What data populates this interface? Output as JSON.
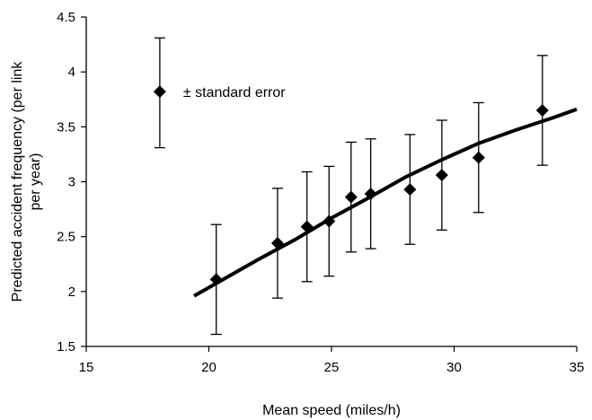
{
  "chart_data": {
    "type": "scatter",
    "title": "",
    "xlabel": "Mean speed (miles/h)",
    "ylabel": "Predicted accident frequency (per link per year)",
    "xlim": [
      15,
      35
    ],
    "ylim": [
      1.5,
      4.5
    ],
    "x_ticks": [
      15,
      20,
      25,
      30,
      35
    ],
    "y_ticks": [
      1.5,
      2,
      2.5,
      3,
      3.5,
      4,
      4.5
    ],
    "x_tick_labels": [
      "15",
      "20",
      "25",
      "30",
      "35"
    ],
    "y_tick_labels": [
      "1.5",
      "2",
      "2.5",
      "3",
      "3.5",
      "4",
      "4.5"
    ],
    "grid": false,
    "legend": {
      "placement": "top-left",
      "symbol_x": 18,
      "symbol_y": 3.82,
      "error_lower": 3.31,
      "error_upper": 4.31,
      "text": "± standard error"
    },
    "series": [
      {
        "marker": "diamond",
        "points": [
          {
            "x": 20.3,
            "y": 2.11,
            "lower": 1.61,
            "upper": 2.61
          },
          {
            "x": 22.8,
            "y": 2.44,
            "lower": 1.94,
            "upper": 2.94
          },
          {
            "x": 24.0,
            "y": 2.59,
            "lower": 2.09,
            "upper": 3.09
          },
          {
            "x": 24.9,
            "y": 2.64,
            "lower": 2.14,
            "upper": 3.14
          },
          {
            "x": 25.8,
            "y": 2.86,
            "lower": 2.36,
            "upper": 3.36
          },
          {
            "x": 26.6,
            "y": 2.89,
            "lower": 2.39,
            "upper": 3.39
          },
          {
            "x": 28.2,
            "y": 2.93,
            "lower": 2.43,
            "upper": 3.43
          },
          {
            "x": 29.5,
            "y": 3.06,
            "lower": 2.56,
            "upper": 3.56
          },
          {
            "x": 31.0,
            "y": 3.22,
            "lower": 2.72,
            "upper": 3.72
          },
          {
            "x": 33.6,
            "y": 3.65,
            "lower": 3.15,
            "upper": 4.15
          }
        ]
      },
      {
        "marker": "none",
        "line": "fit-curve",
        "points": [
          {
            "x": 19.4,
            "y": 1.96
          },
          {
            "x": 20.5,
            "y": 2.1
          },
          {
            "x": 22,
            "y": 2.29
          },
          {
            "x": 23.5,
            "y": 2.47
          },
          {
            "x": 25,
            "y": 2.67
          },
          {
            "x": 26.5,
            "y": 2.85
          },
          {
            "x": 28,
            "y": 3.04
          },
          {
            "x": 29.5,
            "y": 3.2
          },
          {
            "x": 31,
            "y": 3.35
          },
          {
            "x": 32.5,
            "y": 3.47
          },
          {
            "x": 34,
            "y": 3.58
          },
          {
            "x": 35,
            "y": 3.66
          }
        ]
      }
    ]
  }
}
